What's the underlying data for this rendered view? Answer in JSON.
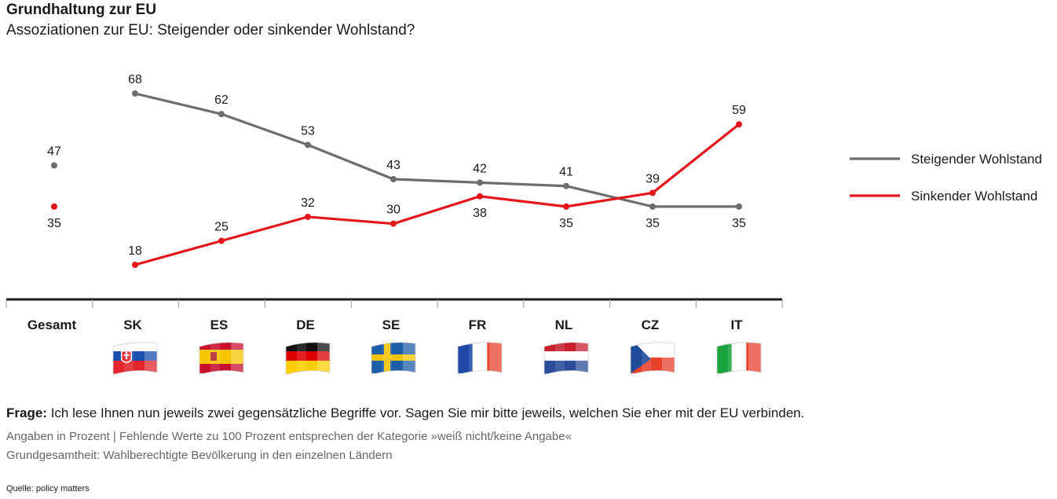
{
  "title": "Grundhaltung zur EU",
  "subtitle": "Assoziationen zur EU: Steigender oder sinkender Wohlstand?",
  "question_label": "Frage:",
  "question_text": "Ich lese Ihnen nun jeweils zwei gegensätzliche Begriffe vor. Sagen Sie mir bitte jeweils, welchen Sie eher mit der EU verbinden.",
  "note_1": "Angaben in Prozent | Fehlende Werte zu 100 Prozent entsprechen der Kategorie »weiß nicht/keine Angabe«",
  "note_2": "Grundgesamtheit: Wahlberechtigte Bevölkerung in den einzelnen Ländern",
  "source": "Quelle: policy matters",
  "flags": [
    {
      "country": "SK",
      "icon": "flag-slovakia-icon",
      "colors": [
        "#ffffff",
        "#1a4fb0",
        "#e3262e"
      ]
    },
    {
      "country": "ES",
      "icon": "flag-spain-icon",
      "colors": [
        "#c8102e",
        "#f7c600",
        "#c8102e"
      ]
    },
    {
      "country": "DE",
      "icon": "flag-germany-icon",
      "colors": [
        "#111111",
        "#dd0000",
        "#ffce00"
      ]
    },
    {
      "country": "SE",
      "icon": "flag-sweden-icon",
      "colors": [
        "#1c5ea8",
        "#f5c400"
      ]
    },
    {
      "country": "FR",
      "icon": "flag-france-icon",
      "colors": [
        "#1f4aa8",
        "#ffffff",
        "#e8412c"
      ]
    },
    {
      "country": "NL",
      "icon": "flag-netherlands-icon",
      "colors": [
        "#c8202f",
        "#ffffff",
        "#2a4c9a"
      ]
    },
    {
      "country": "CZ",
      "icon": "flag-czechia-icon",
      "colors": [
        "#ffffff",
        "#e8412c",
        "#1e4b9a"
      ]
    },
    {
      "country": "IT",
      "icon": "flag-italy-icon",
      "colors": [
        "#1aa23d",
        "#ffffff",
        "#e8412c"
      ]
    }
  ],
  "chart_data": {
    "type": "line",
    "categories": [
      "Gesamt",
      "SK",
      "ES",
      "DE",
      "SE",
      "FR",
      "NL",
      "CZ",
      "IT"
    ],
    "series": [
      {
        "name": "Steigender Wohlstand",
        "color": "#6d6d6d",
        "values": [
          47,
          68,
          62,
          53,
          43,
          42,
          41,
          35,
          35
        ],
        "connect_from_index": 1
      },
      {
        "name": "Sinkender Wohlstand",
        "color": "#e3161b",
        "values": [
          35,
          18,
          25,
          32,
          30,
          38,
          35,
          39,
          59
        ],
        "connect_from_index": 1
      }
    ],
    "legend_position": "right",
    "grid": false,
    "xlabel": "",
    "ylabel": ""
  }
}
